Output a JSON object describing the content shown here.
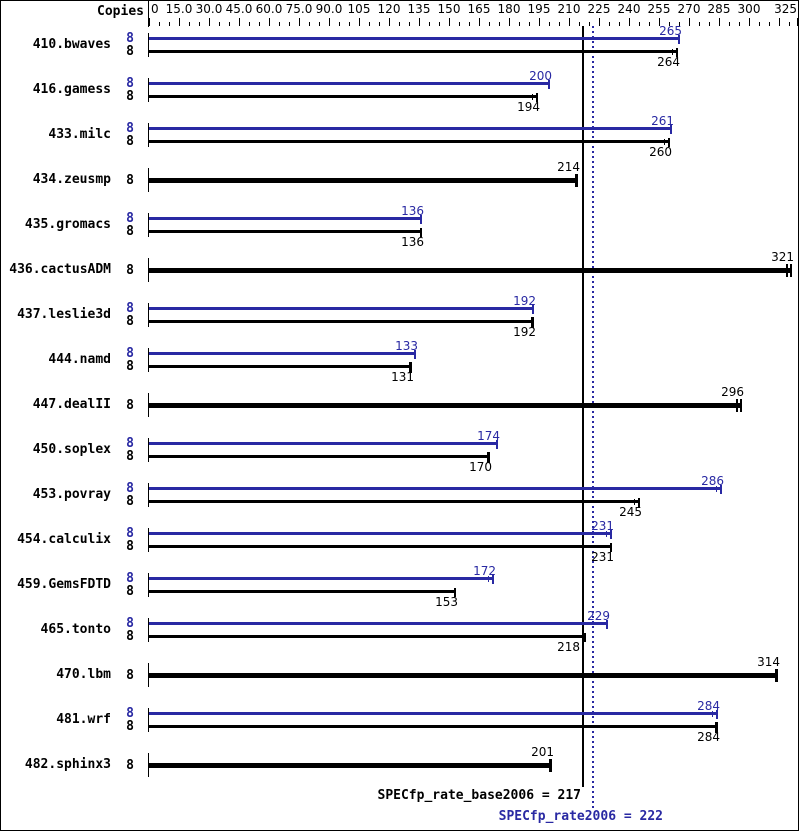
{
  "colors": {
    "peak": "#2929a3",
    "base": "#000000",
    "background": "#ffffff"
  },
  "chart_data": {
    "type": "bar",
    "orientation": "horizontal",
    "copies_header": "Copies",
    "xlim": [
      0,
      325
    ],
    "grid": false,
    "legend_position": "none",
    "axis_tick_labels": [
      {
        "v": 0,
        "t": "0"
      },
      {
        "v": 15,
        "t": "15.0"
      },
      {
        "v": 30,
        "t": "30.0"
      },
      {
        "v": 45,
        "t": "45.0"
      },
      {
        "v": 60,
        "t": "60.0"
      },
      {
        "v": 75,
        "t": "75.0"
      },
      {
        "v": 90,
        "t": "90.0"
      },
      {
        "v": 105,
        "t": "105"
      },
      {
        "v": 120,
        "t": "120"
      },
      {
        "v": 135,
        "t": "135"
      },
      {
        "v": 150,
        "t": "150"
      },
      {
        "v": 165,
        "t": "165"
      },
      {
        "v": 180,
        "t": "180"
      },
      {
        "v": 195,
        "t": "195"
      },
      {
        "v": 210,
        "t": "210"
      },
      {
        "v": 225,
        "t": "225"
      },
      {
        "v": 240,
        "t": "240"
      },
      {
        "v": 255,
        "t": "255"
      },
      {
        "v": 270,
        "t": "270"
      },
      {
        "v": 285,
        "t": "285"
      },
      {
        "v": 300,
        "t": "300"
      },
      {
        "v": 325,
        "t": "325"
      }
    ],
    "minor_tick_step": 5,
    "major_tick_step": 15,
    "categories": [
      "410.bwaves",
      "416.gamess",
      "433.milc",
      "434.zeusmp",
      "435.gromacs",
      "436.cactusADM",
      "437.leslie3d",
      "444.namd",
      "447.dealII",
      "450.soplex",
      "453.povray",
      "454.calculix",
      "459.GemsFDTD",
      "465.tonto",
      "470.lbm",
      "481.wrf",
      "482.sphinx3"
    ],
    "series": [
      {
        "name": "peak",
        "values": [
          265,
          200,
          261,
          null,
          136,
          null,
          192,
          133,
          null,
          174,
          286,
          231,
          172,
          229,
          null,
          284,
          null
        ]
      },
      {
        "name": "base",
        "values": [
          264,
          194,
          260,
          214,
          136,
          321,
          192,
          131,
          296,
          170,
          245,
          231,
          153,
          218,
          314,
          284,
          201
        ]
      }
    ],
    "benchmarks": [
      {
        "name": "410.bwaves",
        "copies": [
          8,
          8
        ],
        "peak": 265,
        "base": 264,
        "peak_cap": "tick",
        "base_cap": "double"
      },
      {
        "name": "416.gamess",
        "copies": [
          8,
          8
        ],
        "peak": 200,
        "base": 194,
        "peak_cap": "tick",
        "base_cap": "double"
      },
      {
        "name": "433.milc",
        "copies": [
          8,
          8
        ],
        "peak": 261,
        "base": 260,
        "peak_cap": "tick",
        "base_cap": "double"
      },
      {
        "name": "434.zeusmp",
        "copies": [
          8
        ],
        "peak": null,
        "base": 214,
        "base_cap": "block"
      },
      {
        "name": "435.gromacs",
        "copies": [
          8,
          8
        ],
        "peak": 136,
        "base": 136,
        "peak_cap": "tick",
        "base_cap": "tick"
      },
      {
        "name": "436.cactusADM",
        "copies": [
          8
        ],
        "peak": null,
        "base": 321,
        "base_cap": "double"
      },
      {
        "name": "437.leslie3d",
        "copies": [
          8,
          8
        ],
        "peak": 192,
        "base": 192,
        "peak_cap": "tick",
        "base_cap": "block"
      },
      {
        "name": "444.namd",
        "copies": [
          8,
          8
        ],
        "peak": 133,
        "base": 131,
        "peak_cap": "tick",
        "base_cap": "block"
      },
      {
        "name": "447.dealII",
        "copies": [
          8
        ],
        "peak": null,
        "base": 296,
        "base_cap": "double"
      },
      {
        "name": "450.soplex",
        "copies": [
          8,
          8
        ],
        "peak": 174,
        "base": 170,
        "peak_cap": "tick",
        "base_cap": "block"
      },
      {
        "name": "453.povray",
        "copies": [
          8,
          8
        ],
        "peak": 286,
        "base": 245,
        "peak_cap": "double",
        "base_cap": "double"
      },
      {
        "name": "454.calculix",
        "copies": [
          8,
          8
        ],
        "peak": 231,
        "base": 231,
        "peak_cap": "double",
        "base_cap": "tick"
      },
      {
        "name": "459.GemsFDTD",
        "copies": [
          8,
          8
        ],
        "peak": 172,
        "base": 153,
        "peak_cap": "double",
        "base_cap": "tick"
      },
      {
        "name": "465.tonto",
        "copies": [
          8,
          8
        ],
        "peak": 229,
        "base": 218,
        "peak_cap": "tick",
        "base_cap": "tick",
        "base_label_dx": -8
      },
      {
        "name": "470.lbm",
        "copies": [
          8
        ],
        "peak": null,
        "base": 314,
        "base_cap": "block"
      },
      {
        "name": "481.wrf",
        "copies": [
          8,
          8
        ],
        "peak": 284,
        "base": 284,
        "peak_cap": "double",
        "base_cap": "block"
      },
      {
        "name": "482.sphinx3",
        "copies": [
          8
        ],
        "peak": null,
        "base": 201,
        "base_cap": "block"
      }
    ],
    "reference_lines": [
      {
        "name": "base",
        "label": "SPECfp_rate_base2006 = 217",
        "value": 217,
        "style": "solid",
        "color": "#000000"
      },
      {
        "name": "peak",
        "label": "SPECfp_rate2006 = 222",
        "value": 222,
        "style": "dotted",
        "color": "#2929a3"
      }
    ]
  }
}
